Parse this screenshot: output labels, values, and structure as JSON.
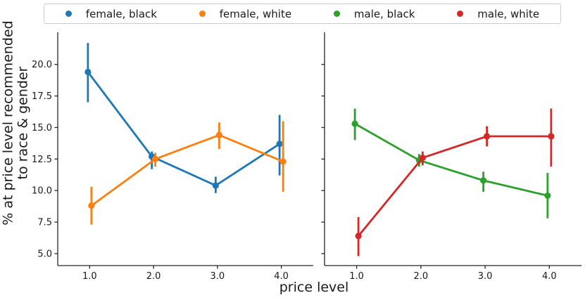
{
  "figure": {
    "ylabel": "% at price level recommended\nto race & gender",
    "xlabel": "price level"
  },
  "legend": {
    "items": [
      {
        "label": "female, black",
        "color": "#1f77b4"
      },
      {
        "label": "female, white",
        "color": "#ff7f0e"
      },
      {
        "label": "male, black",
        "color": "#2ca02c"
      },
      {
        "label": "male, white",
        "color": "#d62728"
      }
    ]
  },
  "chart_data": [
    {
      "type": "line",
      "panel": "left",
      "x": [
        1.0,
        2.0,
        3.0,
        4.0
      ],
      "xtick_labels": [
        "1.0",
        "2.0",
        "3.0",
        "4.0"
      ],
      "ytick_labels": [
        "5.0",
        "7.5",
        "10.0",
        "12.5",
        "15.0",
        "17.5",
        "20.0"
      ],
      "show_ytick_labels": true,
      "xlim": [
        0.5,
        4.5
      ],
      "ylim": [
        4.0,
        22.6
      ],
      "grid": false,
      "series": [
        {
          "name": "female, black",
          "color": "#1f77b4",
          "values": [
            19.4,
            12.7,
            10.4,
            13.7
          ],
          "err_low": [
            17.0,
            11.7,
            9.8,
            11.2
          ],
          "err_high": [
            21.7,
            13.1,
            11.1,
            16.0
          ]
        },
        {
          "name": "female, white",
          "color": "#ff7f0e",
          "values": [
            8.8,
            12.5,
            14.4,
            12.3
          ],
          "err_low": [
            7.3,
            11.9,
            13.3,
            9.9
          ],
          "err_high": [
            10.3,
            13.0,
            15.4,
            15.5
          ]
        }
      ]
    },
    {
      "type": "line",
      "panel": "right",
      "x": [
        1.0,
        2.0,
        3.0,
        4.0
      ],
      "xtick_labels": [
        "1.0",
        "2.0",
        "3.0",
        "4.0"
      ],
      "ytick_labels": [
        "5.0",
        "7.5",
        "10.0",
        "12.5",
        "15.0",
        "17.5",
        "20.0"
      ],
      "show_ytick_labels": false,
      "xlim": [
        0.5,
        4.5
      ],
      "ylim": [
        4.0,
        22.6
      ],
      "grid": false,
      "series": [
        {
          "name": "male, black",
          "color": "#2ca02c",
          "values": [
            15.3,
            12.4,
            10.8,
            9.6
          ],
          "err_low": [
            14.0,
            11.9,
            9.9,
            7.8
          ],
          "err_high": [
            16.5,
            12.9,
            11.5,
            11.4
          ]
        },
        {
          "name": "male, white",
          "color": "#d62728",
          "values": [
            6.4,
            12.6,
            14.3,
            14.3
          ],
          "err_low": [
            4.8,
            12.0,
            13.5,
            11.9
          ],
          "err_high": [
            7.9,
            13.1,
            15.1,
            16.5
          ]
        }
      ]
    }
  ]
}
